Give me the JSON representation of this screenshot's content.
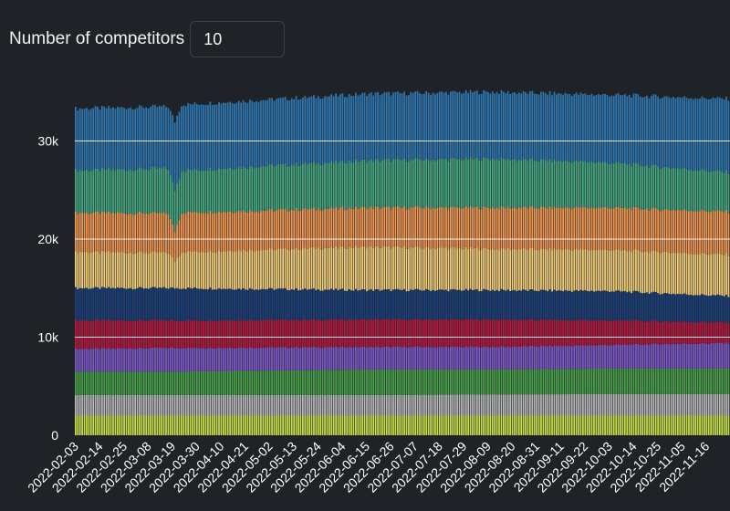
{
  "controls": {
    "competitors_label": "Number of competitors",
    "competitors_value": "10"
  },
  "colors": {
    "background": "#1f2328",
    "grid": "#ffffff",
    "text": "#ffffff",
    "series": [
      "#c8e04a",
      "#b9b9b9",
      "#4aa34a",
      "#7f58c9",
      "#b5193f",
      "#1b3f7a",
      "#f7d17a",
      "#f49a53",
      "#47a982",
      "#2f77b0"
    ]
  },
  "chart_data": {
    "type": "bar",
    "stacked": true,
    "title": "",
    "xlabel": "",
    "ylabel": "",
    "ylim": [
      0,
      36000
    ],
    "yticks": [
      0,
      10000,
      20000,
      30000
    ],
    "ytick_labels": [
      "0",
      "10k",
      "20k",
      "30k"
    ],
    "grid": "horizontal",
    "x_start": "2022-02-03",
    "x_end": "2022-11-26",
    "xtick_labels": [
      "2022-02-03",
      "2022-02-14",
      "2022-02-25",
      "2022-03-08",
      "2022-03-19",
      "2022-03-30",
      "2022-04-10",
      "2022-04-21",
      "2022-05-02",
      "2022-05-13",
      "2022-05-24",
      "2022-06-04",
      "2022-06-15",
      "2022-06-26",
      "2022-07-07",
      "2022-07-18",
      "2022-07-29",
      "2022-08-09",
      "2022-08-20",
      "2022-08-31",
      "2022-09-11",
      "2022-09-22",
      "2022-10-03",
      "2022-10-14",
      "2022-10-25",
      "2022-11-05",
      "2022-11-16"
    ],
    "series_boundaries": [
      {
        "date": "2022-02-03",
        "cumulative": [
          2000,
          4100,
          6500,
          8800,
          11700,
          15000,
          18700,
          22700,
          27000,
          33300
        ]
      },
      {
        "date": "2022-03-17",
        "cumulative": [
          2000,
          4100,
          6500,
          8900,
          11700,
          15000,
          18600,
          22600,
          27200,
          33500
        ]
      },
      {
        "date": "2022-03-20",
        "cumulative": [
          2000,
          4100,
          6500,
          8900,
          11700,
          15000,
          17800,
          20800,
          25000,
          32000
        ]
      },
      {
        "date": "2022-03-23",
        "cumulative": [
          2000,
          4100,
          6500,
          8900,
          11700,
          15000,
          18700,
          22700,
          27000,
          33700
        ]
      },
      {
        "date": "2022-06-15",
        "cumulative": [
          2000,
          4100,
          6700,
          9000,
          11800,
          14800,
          19200,
          23200,
          28000,
          34800
        ]
      },
      {
        "date": "2022-08-09",
        "cumulative": [
          2000,
          4150,
          6700,
          9000,
          11800,
          14800,
          19000,
          23200,
          28200,
          35000
        ]
      },
      {
        "date": "2022-10-03",
        "cumulative": [
          2000,
          4200,
          6800,
          9200,
          11700,
          14700,
          18900,
          23200,
          27800,
          34700
        ]
      },
      {
        "date": "2022-11-26",
        "cumulative": [
          2000,
          4200,
          6800,
          9400,
          11500,
          14200,
          18400,
          22800,
          26800,
          34300
        ]
      }
    ]
  }
}
